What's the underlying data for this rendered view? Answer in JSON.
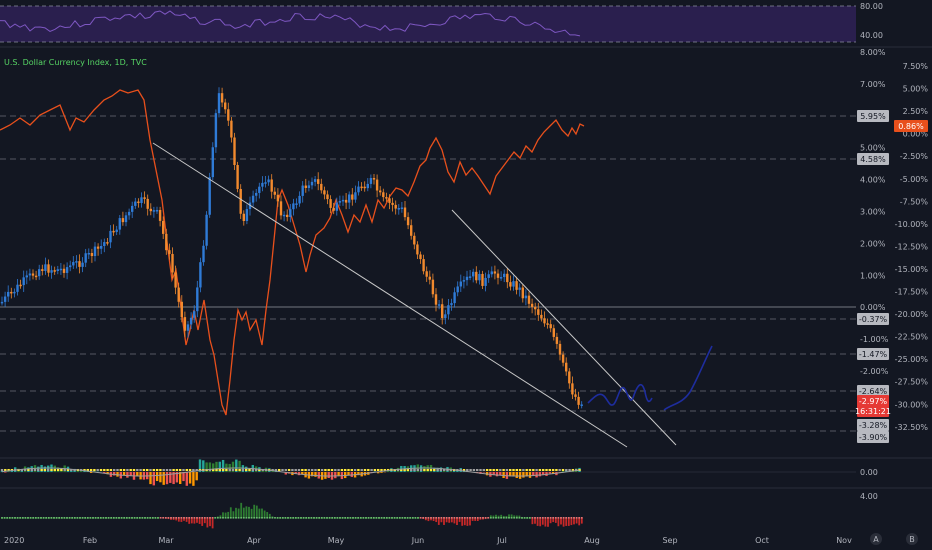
{
  "symbol_title": "U.S. Dollar Currency Index, 1D, TVC",
  "colors": {
    "background": "#131722",
    "candle_up": "#2f7bd6",
    "candle_down": "#f28a2e",
    "overlay_line": "#e8501c",
    "trendline": "#c8c8c8",
    "drawing": "#1e2d9e",
    "rsi_line": "#7e57c2",
    "rsi_band": "#2a1f4e",
    "hist_up": "#2e7d32",
    "hist_down": "#c62828"
  },
  "rsi_axis": [
    "80.00",
    "40.00"
  ],
  "left_axis_labels": [
    "8.00%",
    "7.00%",
    "6.00%",
    "5.00%",
    "4.00%",
    "3.00%",
    "2.00%",
    "1.00%",
    "0.00%",
    "-1.00%",
    "-2.00%",
    "-3.00%"
  ],
  "right_axis_labels": [
    "7.50%",
    "5.00%",
    "2.50%",
    "0.00%",
    "-2.50%",
    "-5.00%",
    "-7.50%",
    "-10.00%",
    "-12.50%",
    "-15.00%",
    "-17.50%",
    "-20.00%",
    "-22.50%",
    "-25.00%",
    "-27.50%",
    "-30.00%",
    "-32.50%"
  ],
  "level_tags": [
    {
      "label": "5.95%",
      "style": "gray"
    },
    {
      "label": "4.58%",
      "style": "gray"
    },
    {
      "label": "-0.37%",
      "style": "gray"
    },
    {
      "label": "-1.47%",
      "style": "gray"
    },
    {
      "label": "-2.64%",
      "style": "gray"
    },
    {
      "label": "-2.97%",
      "style": "red"
    },
    {
      "label": "16:31:21",
      "style": "red"
    },
    {
      "label": "-3.28%",
      "style": "gray"
    },
    {
      "label": "-3.90%",
      "style": "gray"
    }
  ],
  "right_current_tag": "0.86%",
  "oscillator_axis": [
    "0.00",
    "4.00"
  ],
  "x_axis_labels": [
    "2020",
    "Feb",
    "Mar",
    "Apr",
    "May",
    "Jun",
    "Jul",
    "Aug",
    "Sep",
    "Oct",
    "Nov"
  ],
  "corner_buttons": [
    "A",
    "B"
  ],
  "chart_data": {
    "type": "line",
    "title": "U.S. Dollar Currency Index, 1D, TVC",
    "x": [
      "2020",
      "Feb",
      "Mar",
      "Apr",
      "May",
      "Jun",
      "Jul",
      "Aug"
    ],
    "series": [
      {
        "values": [
          1.0,
          3.0,
          0.5,
          4.0,
          3.5,
          1.5,
          0.3,
          -3.0
        ]
      },
      {
        "values": [
          1.5,
          3.5,
          -31.0,
          -3.0,
          -10.0,
          -3.0,
          -1.0,
          0.86
        ]
      }
    ],
    "left_ylim": [
      -3.5,
      8.0
    ],
    "right_ylim": [
      -35,
      7.5
    ]
  }
}
